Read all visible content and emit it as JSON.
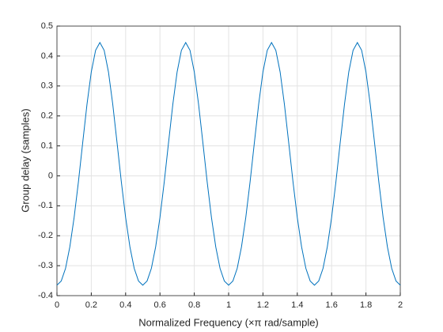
{
  "chart_data": {
    "type": "line",
    "xlabel": "Normalized Frequency (×π rad/sample)",
    "ylabel": "Group delay (samples)",
    "color": "#0072bd",
    "grid": true,
    "xlim": [
      0,
      2
    ],
    "ylim": [
      -0.4,
      0.5
    ],
    "xticks": [
      0,
      0.2,
      0.4,
      0.6,
      0.8,
      1,
      1.2,
      1.4,
      1.6,
      1.8,
      2
    ],
    "yticks": [
      -0.4,
      -0.3,
      -0.2,
      -0.1,
      0,
      0.1,
      0.2,
      0.3,
      0.4,
      0.5
    ],
    "x": [
      0,
      0.025,
      0.05,
      0.075,
      0.1,
      0.125,
      0.15,
      0.175,
      0.2,
      0.225,
      0.25,
      0.275,
      0.3,
      0.325,
      0.35,
      0.375,
      0.4,
      0.425,
      0.45,
      0.475,
      0.5,
      0.525,
      0.55,
      0.575,
      0.6,
      0.625,
      0.65,
      0.675,
      0.7,
      0.725,
      0.75,
      0.775,
      0.8,
      0.825,
      0.85,
      0.875,
      0.9,
      0.925,
      0.95,
      0.975,
      1,
      1.025,
      1.05,
      1.075,
      1.1,
      1.125,
      1.15,
      1.175,
      1.2,
      1.225,
      1.25,
      1.275,
      1.3,
      1.325,
      1.35,
      1.375,
      1.4,
      1.425,
      1.45,
      1.475,
      1.5,
      1.525,
      1.55,
      1.575,
      1.6,
      1.625,
      1.65,
      1.675,
      1.7,
      1.725,
      1.75,
      1.775,
      1.8,
      1.825,
      1.85,
      1.875,
      1.9,
      1.925,
      1.95,
      1.975,
      2
    ],
    "values": [
      -0.365,
      -0.351,
      -0.309,
      -0.237,
      -0.139,
      -0.02,
      0.111,
      0.239,
      0.347,
      0.419,
      0.445,
      0.419,
      0.347,
      0.239,
      0.111,
      -0.02,
      -0.139,
      -0.237,
      -0.309,
      -0.351,
      -0.365,
      -0.351,
      -0.309,
      -0.237,
      -0.139,
      -0.02,
      0.111,
      0.239,
      0.347,
      0.419,
      0.445,
      0.419,
      0.347,
      0.239,
      0.111,
      -0.02,
      -0.139,
      -0.237,
      -0.309,
      -0.351,
      -0.365,
      -0.351,
      -0.309,
      -0.237,
      -0.139,
      -0.02,
      0.111,
      0.239,
      0.347,
      0.419,
      0.445,
      0.419,
      0.347,
      0.239,
      0.111,
      -0.02,
      -0.139,
      -0.237,
      -0.309,
      -0.351,
      -0.365,
      -0.351,
      -0.309,
      -0.237,
      -0.139,
      -0.02,
      0.111,
      0.239,
      0.347,
      0.419,
      0.445,
      0.419,
      0.347,
      0.239,
      0.111,
      -0.02,
      -0.139,
      -0.237,
      -0.309,
      -0.351,
      -0.365
    ]
  }
}
